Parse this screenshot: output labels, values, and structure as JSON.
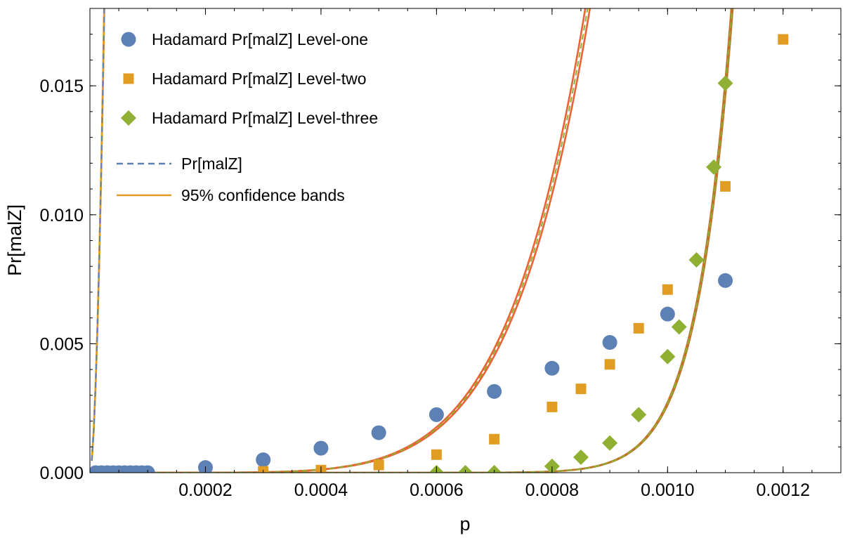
{
  "chart_data": {
    "type": "scatter",
    "xlabel": "p",
    "ylabel": "Pr[malZ]",
    "xlim": [
      0.0,
      0.0013
    ],
    "ylim": [
      0.0,
      0.018
    ],
    "x_ticks": [
      {
        "value": 0.0002,
        "label": "0.0002"
      },
      {
        "value": 0.0004,
        "label": "0.0004"
      },
      {
        "value": 0.0006,
        "label": "0.0006"
      },
      {
        "value": 0.0008,
        "label": "0.0008"
      },
      {
        "value": 0.001,
        "label": "0.0010"
      },
      {
        "value": 0.0012,
        "label": "0.0012"
      }
    ],
    "y_ticks": [
      {
        "value": 0.0,
        "label": "0.000"
      },
      {
        "value": 0.005,
        "label": "0.005"
      },
      {
        "value": 0.01,
        "label": "0.010"
      },
      {
        "value": 0.015,
        "label": "0.015"
      }
    ],
    "grid": false,
    "legend_position": "top-left",
    "series": [
      {
        "name": "Hadamard Pr[malZ] Level-one",
        "marker": "circle",
        "color": "#5E81B5",
        "x": [
          1e-05,
          2e-05,
          3e-05,
          4e-05,
          5e-05,
          6e-05,
          7e-05,
          8e-05,
          9e-05,
          0.0001,
          0.0002,
          0.0003,
          0.0004,
          0.0005,
          0.0006,
          0.0007,
          0.0008,
          0.0009,
          0.001,
          0.0011
        ],
        "y": [
          0.0,
          0.0,
          0.0,
          0.0,
          0.0,
          0.0,
          0.0,
          0.0,
          0.0,
          0.0,
          0.0002,
          0.0005,
          0.00095,
          0.00155,
          0.00225,
          0.00315,
          0.00405,
          0.00505,
          0.00615,
          0.00745
        ]
      },
      {
        "name": "Hadamard Pr[malZ] Level-two",
        "marker": "square",
        "color": "#E19C24",
        "x": [
          0.0003,
          0.0004,
          0.0005,
          0.0006,
          0.0007,
          0.0008,
          0.00085,
          0.0009,
          0.00095,
          0.001,
          0.0011,
          0.0012
        ],
        "y": [
          5e-05,
          0.0001,
          0.0003,
          0.0007,
          0.0013,
          0.00255,
          0.00325,
          0.0042,
          0.0056,
          0.0071,
          0.0111,
          0.0168
        ]
      },
      {
        "name": "Hadamard Pr[malZ] Level-three",
        "marker": "diamond",
        "color": "#8FB032",
        "x": [
          0.0006,
          0.00065,
          0.0007,
          0.0008,
          0.00085,
          0.0009,
          0.00095,
          0.001,
          0.00102,
          0.00105,
          0.00108,
          0.0011
        ],
        "y": [
          0.0,
          0.0,
          0.0,
          0.00025,
          0.0006,
          0.00115,
          0.00225,
          0.0045,
          0.00565,
          0.00825,
          0.01185,
          0.0151
        ]
      }
    ],
    "fits": [
      {
        "for": "Hadamard Pr[malZ] Level-one",
        "function": "power",
        "coefficient": 3500000,
        "exponent": 1.8,
        "band_color": "#E19C24",
        "fit_color": "#5E81B5",
        "band_relative_width": 0.015
      },
      {
        "for": "Hadamard Pr[malZ] Level-two",
        "function": "power",
        "coefficient": 1.5e+18,
        "exponent": 6.5,
        "band_color": "#EB6235",
        "fit_color": "#8FB032",
        "band_relative_width": 0.03
      },
      {
        "for": "Hadamard Pr[malZ] Level-three",
        "function": "power",
        "coefficient": 2.68e+51,
        "exponent": 18.0,
        "band_color": "#C0742A",
        "fit_color": "#8FB032",
        "band_relative_width": 0.02
      }
    ],
    "legend": [
      {
        "label": "Hadamard Pr[malZ] Level-one",
        "marker": "circle",
        "color": "#5E81B5"
      },
      {
        "label": "Hadamard Pr[malZ] Level-two",
        "marker": "square",
        "color": "#E19C24"
      },
      {
        "label": "Hadamard Pr[malZ] Level-three",
        "marker": "diamond",
        "color": "#8FB032"
      },
      {
        "label": "Pr[malZ]",
        "marker": "dashed-line",
        "color": "#5E81B5"
      },
      {
        "label": "95% confidence bands",
        "marker": "solid-line",
        "color": "#E19C24"
      }
    ]
  }
}
